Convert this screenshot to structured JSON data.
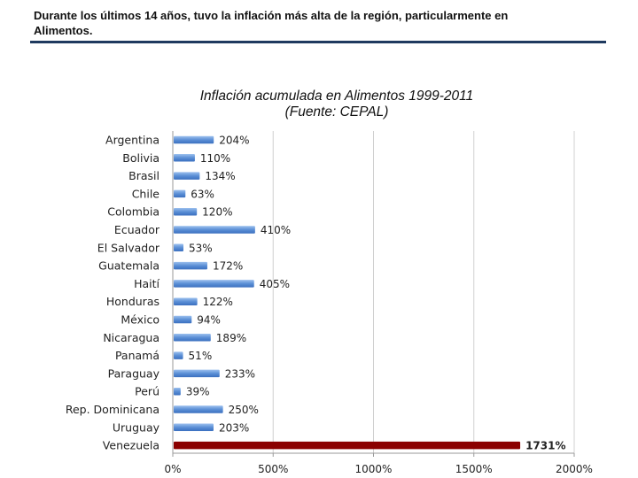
{
  "headline": {
    "line1": "Durante los últimos 14 años, tuvo la inflación más alta de la región, particularmente en",
    "line2": "Alimentos."
  },
  "chart_data": {
    "type": "bar",
    "orientation": "horizontal",
    "title": "Inflación acumulada en Alimentos 1999-2011",
    "subtitle": "(Fuente: CEPAL)",
    "categories": [
      "Argentina",
      "Bolivia",
      "Brasil",
      "Chile",
      "Colombia",
      "Ecuador",
      "El Salvador",
      "Guatemala",
      "Haití",
      "Honduras",
      "México",
      "Nicaragua",
      "Panamá",
      "Paraguay",
      "Perú",
      "Rep. Dominicana",
      "Uruguay",
      "Venezuela"
    ],
    "values": [
      204,
      110,
      134,
      63,
      120,
      410,
      53,
      172,
      405,
      122,
      94,
      189,
      51,
      233,
      39,
      250,
      203,
      1731
    ],
    "value_labels": [
      "204%",
      "110%",
      "134%",
      "63%",
      "120%",
      "410%",
      "53%",
      "172%",
      "405%",
      "122%",
      "94%",
      "189%",
      "51%",
      "233%",
      "39%",
      "250%",
      "203%",
      "1731%"
    ],
    "xlim": [
      0,
      2000
    ],
    "xticks": [
      0,
      500,
      1000,
      1500,
      2000
    ],
    "xtick_labels": [
      "0%",
      "500%",
      "1000%",
      "1500%",
      "2000%"
    ],
    "grid": true,
    "colors": {
      "default_bar": "#5b8fd6",
      "default_bar_dark": "#3a6fbf",
      "highlight_bar": "#8b0000",
      "grid": "#d0d0d0",
      "axis": "#9a9a9a"
    },
    "highlight_category": "Venezuela"
  }
}
